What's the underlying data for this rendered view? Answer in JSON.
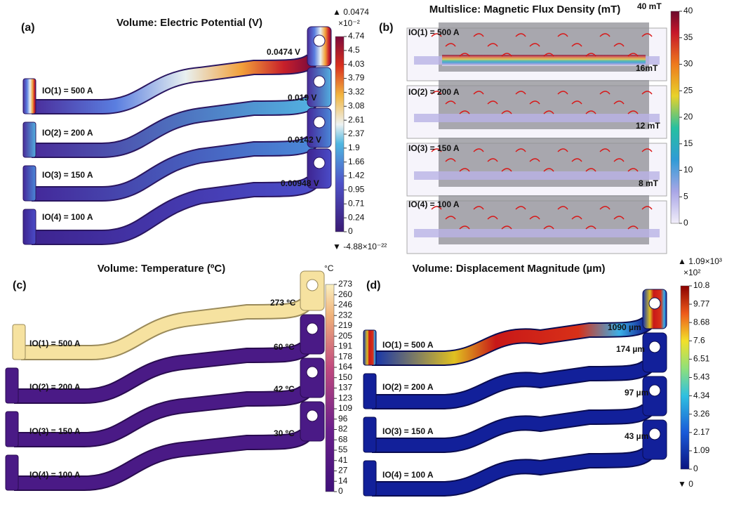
{
  "panels": [
    {
      "label": "(a)",
      "title": "Volume: Electric Potential (V)",
      "colorbar": {
        "max": "▲ 0.0474",
        "exponent": "×10⁻²",
        "ticks": [
          "4.74",
          "4.5",
          "4.03",
          "3.79",
          "3.32",
          "3.08",
          "2.61",
          "2.37",
          "1.9",
          "1.66",
          "1.42",
          "0.95",
          "0.71",
          "0.24",
          "0"
        ],
        "min": "▼ -4.88×10⁻²²"
      },
      "rows": [
        {
          "current": "IO(1) = 500 A",
          "value": "0.0474 V"
        },
        {
          "current": "IO(2) = 200 A",
          "value": "0.019 V"
        },
        {
          "current": "IO(3) = 150 A",
          "value": "0.0142 V"
        },
        {
          "current": "IO(4) = 100 A",
          "value": "0.00948 V"
        }
      ]
    },
    {
      "label": "(b)",
      "title": "Multislice: Magnetic Flux Density (mT)",
      "colorbar": {
        "ticks": [
          "40",
          "35",
          "30",
          "25",
          "20",
          "15",
          "10",
          "5",
          "0"
        ]
      },
      "rows": [
        {
          "current": "IO(1) = 500 A",
          "value": "40 mT"
        },
        {
          "current": "IO(2) = 200 A",
          "value": "16mT"
        },
        {
          "current": "IO(3) = 150 A",
          "value": "12 mT"
        },
        {
          "current": "IO(4) = 100 A",
          "value": "8 mT"
        }
      ]
    },
    {
      "label": "(c)",
      "title": "Volume: Temperature (ºC)",
      "colorbar": {
        "unit": "°C",
        "ticks": [
          "273",
          "260",
          "246",
          "232",
          "219",
          "205",
          "191",
          "178",
          "164",
          "150",
          "137",
          "123",
          "109",
          "96",
          "82",
          "68",
          "55",
          "41",
          "27",
          "14",
          "0"
        ]
      },
      "rows": [
        {
          "current": "IO(1) = 500 A",
          "value": "273 ºC"
        },
        {
          "current": "IO(2) = 200 A",
          "value": "60 ºC"
        },
        {
          "current": "IO(3) = 150 A",
          "value": "42 ºC"
        },
        {
          "current": "IO(4) = 100 A",
          "value": "30 ºC"
        }
      ]
    },
    {
      "label": "(d)",
      "title": "Volume: Displacement Magnitude (µm)",
      "colorbar": {
        "max": "▲ 1.09×10³",
        "exponent": "×10²",
        "ticks": [
          "10.8",
          "9.77",
          "8.68",
          "7.6",
          "6.51",
          "5.43",
          "4.34",
          "3.26",
          "2.17",
          "1.09",
          "0"
        ],
        "min": "▼ 0"
      },
      "rows": [
        {
          "current": "IO(1) = 500 A",
          "value": "1090 µm"
        },
        {
          "current": "IO(2) = 200 A",
          "value": "174 µm"
        },
        {
          "current": "IO(3) = 150 A",
          "value": "97 µm"
        },
        {
          "current": "IO(4) = 100 A",
          "value": "43 µm"
        }
      ]
    }
  ]
}
